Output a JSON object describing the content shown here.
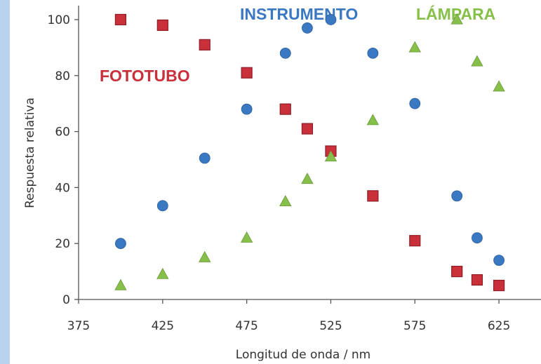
{
  "chart_data": {
    "type": "scatter",
    "title": "",
    "xlabel": "Longitud de onda / nm",
    "ylabel": "Respuesta relativa",
    "xlim": [
      375,
      650
    ],
    "ylim": [
      0,
      105
    ],
    "xticks": [
      375,
      425,
      475,
      525,
      575,
      625
    ],
    "yticks": [
      0,
      20,
      40,
      60,
      80,
      100
    ],
    "grid": false,
    "series": [
      {
        "name": "INSTRUMENTO",
        "color": "#3a78c2",
        "marker": "circle",
        "x": [
          400,
          425,
          450,
          475,
          498,
          511,
          525,
          550,
          575,
          600,
          612,
          625
        ],
        "y": [
          20,
          33.5,
          50.5,
          68,
          88,
          97,
          100,
          88,
          70,
          37,
          22,
          14
        ]
      },
      {
        "name": "FOTOTUBO",
        "color": "#c9303a",
        "marker": "square",
        "x": [
          400,
          425,
          450,
          475,
          498,
          511,
          525,
          550,
          575,
          600,
          612,
          625
        ],
        "y": [
          100,
          98,
          91,
          81,
          68,
          61,
          53,
          37,
          21,
          10,
          7,
          5
        ]
      },
      {
        "name": "LÁMPARA",
        "color": "#86c04a",
        "marker": "triangle",
        "x": [
          400,
          425,
          450,
          475,
          498,
          511,
          525,
          550,
          575,
          600,
          612,
          625
        ],
        "y": [
          5,
          9,
          15,
          22,
          35,
          43,
          51,
          64,
          90,
          100,
          85,
          76
        ]
      }
    ]
  }
}
